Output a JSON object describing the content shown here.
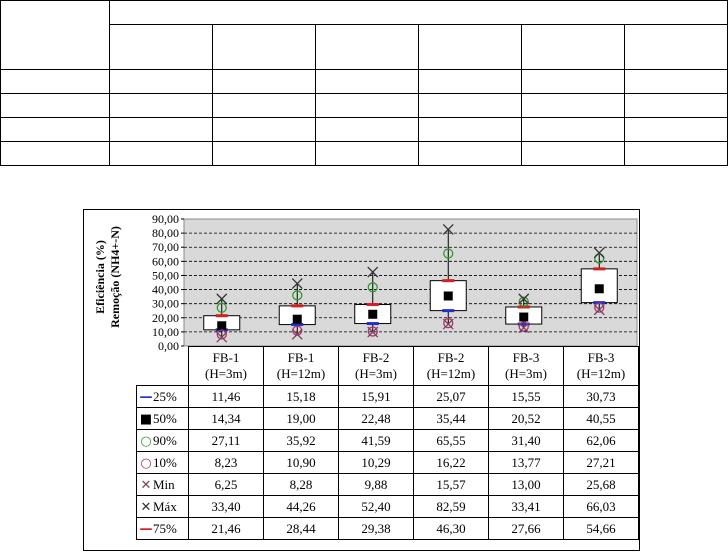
{
  "chart_data": {
    "type": "box",
    "ylabel_line1": "Eficiência (%)",
    "ylabel_line2": "Remoção (NH4+-N)",
    "ylim": [
      0,
      90
    ],
    "yticks": [
      "0,00",
      "10,00",
      "20,00",
      "30,00",
      "40,00",
      "50,00",
      "60,00",
      "70,00",
      "80,00",
      "90,00"
    ],
    "categories": [
      {
        "line1": "FB-1",
        "line2": "(H=3m)"
      },
      {
        "line1": "FB-1",
        "line2": "(H=12m)"
      },
      {
        "line1": "FB-2",
        "line2": "(H=3m)"
      },
      {
        "line1": "FB-2",
        "line2": "(H=12m)"
      },
      {
        "line1": "FB-3",
        "line2": "(H=3m)"
      },
      {
        "line1": "FB-3",
        "line2": "(H=12m)"
      }
    ],
    "series": [
      {
        "name": "25%",
        "marker": "dash",
        "color": "#1f2fd0",
        "values": [
          11.46,
          15.18,
          15.91,
          25.07,
          15.55,
          30.73
        ],
        "labels": [
          "11,46",
          "15,18",
          "15,91",
          "25,07",
          "15,55",
          "30,73"
        ]
      },
      {
        "name": "50%",
        "marker": "square",
        "color": "#000000",
        "values": [
          14.34,
          19.0,
          22.48,
          35.44,
          20.52,
          40.55
        ],
        "labels": [
          "14,34",
          "19,00",
          "22,48",
          "35,44",
          "20,52",
          "40,55"
        ]
      },
      {
        "name": "90%",
        "marker": "circle",
        "color": "#2e9a2e",
        "values": [
          27.11,
          35.92,
          41.59,
          65.55,
          31.4,
          62.06
        ],
        "labels": [
          "27,11",
          "35,92",
          "41,59",
          "65,55",
          "31,40",
          "62,06"
        ]
      },
      {
        "name": "10%",
        "marker": "circle",
        "color": "#b0306a",
        "values": [
          8.23,
          10.9,
          10.29,
          16.22,
          13.77,
          27.21
        ],
        "labels": [
          "8,23",
          "10,90",
          "10,29",
          "16,22",
          "13,77",
          "27,21"
        ]
      },
      {
        "name": "Min",
        "marker": "x",
        "color": "#7a4060",
        "values": [
          6.25,
          8.28,
          9.88,
          15.57,
          13.0,
          25.68
        ],
        "labels": [
          "6,25",
          "8,28",
          "9,88",
          "15,57",
          "13,00",
          "25,68"
        ]
      },
      {
        "name": "Máx",
        "marker": "x",
        "color": "#333333",
        "values": [
          33.4,
          44.26,
          52.4,
          82.59,
          33.41,
          66.03
        ],
        "labels": [
          "33,40",
          "44,26",
          "52,40",
          "82,59",
          "33,41",
          "66,03"
        ]
      },
      {
        "name": "75%",
        "marker": "dash",
        "color": "#d42020",
        "values": [
          21.46,
          28.44,
          29.38,
          46.3,
          27.66,
          54.66
        ],
        "labels": [
          "21,46",
          "28,44",
          "29,38",
          "46,30",
          "27,66",
          "54,66"
        ]
      }
    ]
  },
  "colors": {
    "plot_background": "#d9d9d9"
  }
}
